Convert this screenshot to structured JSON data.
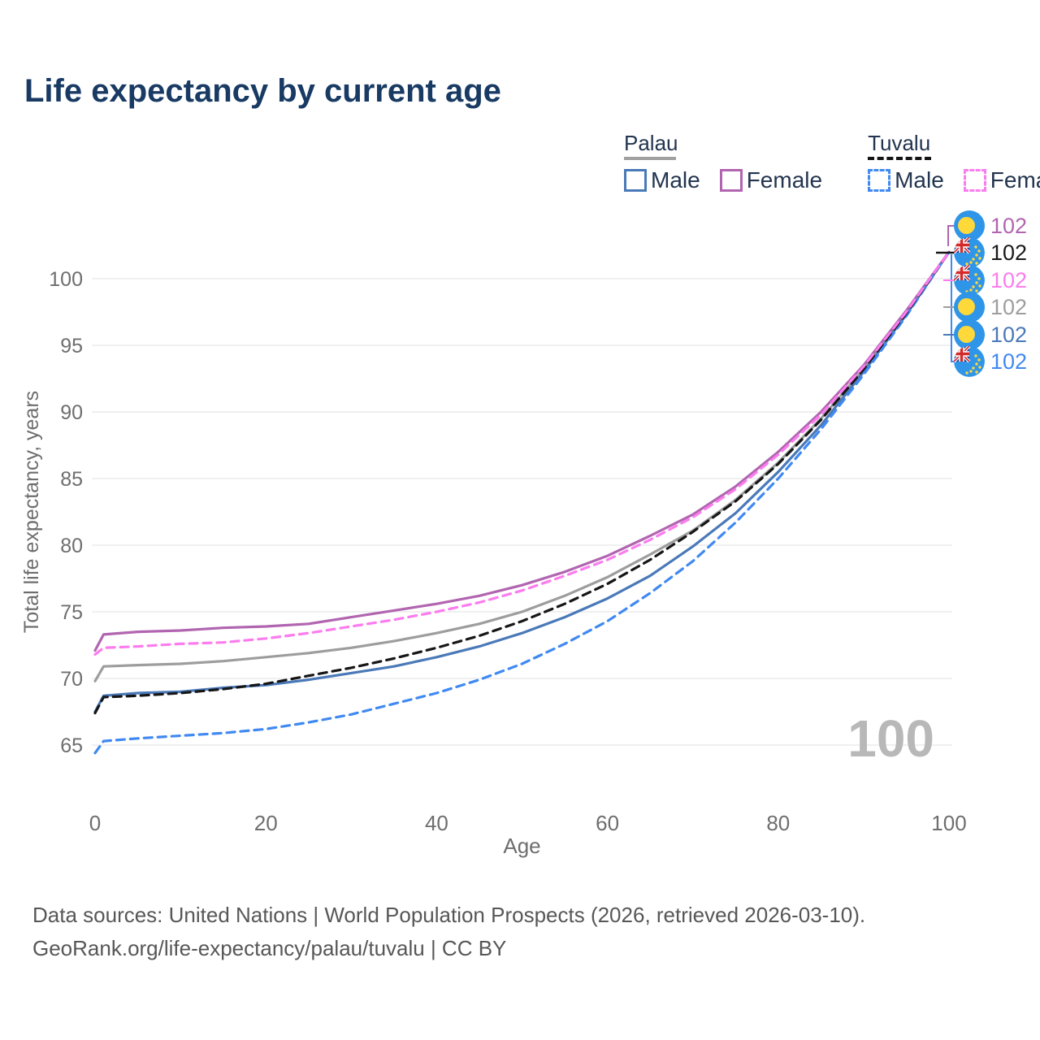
{
  "title": "Life expectancy by current age",
  "watermark": "100",
  "legend": {
    "groups": [
      {
        "label": "Palau",
        "line_style": "solid",
        "underline_color": "#a0a0a0",
        "items": [
          {
            "label": "Male",
            "color": "#4a79b8",
            "dashed": false
          },
          {
            "label": "Female",
            "color": "#b165b0",
            "dashed": false
          }
        ]
      },
      {
        "label": "Tuvalu",
        "line_style": "dashed",
        "underline_color": "#141414",
        "items": [
          {
            "label": "Male",
            "color": "#4089f2",
            "dashed": true
          },
          {
            "label": "Female",
            "color": "#fb7cee",
            "dashed": true
          }
        ]
      }
    ]
  },
  "footer": {
    "line1": "Data sources: United Nations | World Population Prospects (2026, retrieved 2026-03-10).",
    "line2": "GeoRank.org/life-expectancy/palau/tuvalu | CC BY"
  },
  "chart_data": {
    "type": "line",
    "title": "Life expectancy by current age",
    "xlabel": "Age",
    "ylabel": "Total life expectancy, years",
    "x_ticks": [
      0,
      20,
      40,
      60,
      80,
      100
    ],
    "y_ticks": [
      65,
      70,
      75,
      80,
      85,
      90,
      95,
      100
    ],
    "xlim": [
      0,
      100
    ],
    "ylim": [
      63,
      103.5
    ],
    "grid": "horizontal",
    "legend_position": "top-right",
    "x": [
      0,
      1,
      5,
      10,
      15,
      20,
      25,
      30,
      35,
      40,
      45,
      50,
      55,
      60,
      65,
      70,
      75,
      80,
      85,
      90,
      95,
      100
    ],
    "series": [
      {
        "name": "Palau",
        "group": "Palau",
        "color": "#9d9d9d",
        "dashed": false,
        "values": [
          69.8,
          70.9,
          71.0,
          71.1,
          71.3,
          71.6,
          71.9,
          72.3,
          72.8,
          73.4,
          74.1,
          75.0,
          76.2,
          77.6,
          79.3,
          81.1,
          83.4,
          86.2,
          89.5,
          93.2,
          97.4,
          102
        ]
      },
      {
        "name": "Palau Male",
        "group": "Palau",
        "color": "#4a79b8",
        "dashed": false,
        "values": [
          67.5,
          68.7,
          68.9,
          69.0,
          69.3,
          69.5,
          69.9,
          70.4,
          70.9,
          71.6,
          72.4,
          73.4,
          74.6,
          76.0,
          77.7,
          79.9,
          82.4,
          85.5,
          89.0,
          93.0,
          97.3,
          102
        ]
      },
      {
        "name": "Palau Female",
        "group": "Palau",
        "color": "#b165b0",
        "dashed": false,
        "values": [
          72.1,
          73.3,
          73.5,
          73.6,
          73.8,
          73.9,
          74.1,
          74.6,
          75.1,
          75.6,
          76.2,
          77.0,
          78.0,
          79.2,
          80.7,
          82.3,
          84.4,
          87.0,
          90.0,
          93.5,
          97.6,
          102
        ]
      },
      {
        "name": "Tuvalu Male",
        "group": "Tuvalu",
        "color": "#4089f2",
        "dashed": true,
        "values": [
          64.4,
          65.3,
          65.5,
          65.7,
          65.9,
          66.2,
          66.7,
          67.3,
          68.1,
          68.9,
          69.9,
          71.1,
          72.6,
          74.3,
          76.4,
          78.8,
          81.7,
          85.0,
          88.7,
          92.8,
          97.2,
          102
        ]
      },
      {
        "name": "Tuvalu",
        "group": "Tuvalu",
        "color": "#161616",
        "dashed": true,
        "values": [
          67.4,
          68.6,
          68.7,
          68.9,
          69.2,
          69.6,
          70.2,
          70.8,
          71.5,
          72.3,
          73.2,
          74.3,
          75.6,
          77.1,
          78.9,
          81.0,
          83.3,
          86.1,
          89.4,
          93.2,
          97.4,
          102
        ]
      },
      {
        "name": "Tuvalu Female",
        "group": "Tuvalu",
        "color": "#fb7cee",
        "dashed": true,
        "values": [
          71.8,
          72.3,
          72.4,
          72.6,
          72.7,
          73.0,
          73.4,
          73.9,
          74.4,
          75.0,
          75.7,
          76.6,
          77.7,
          78.9,
          80.4,
          82.1,
          84.2,
          86.8,
          89.8,
          93.4,
          97.5,
          102
        ]
      }
    ],
    "end_labels": [
      {
        "series": "Palau Female",
        "flag": "palau",
        "color": "#b165b0",
        "value": "102"
      },
      {
        "series": "Tuvalu",
        "flag": "tuvalu",
        "color": "#1a1a1a",
        "value": "102"
      },
      {
        "series": "Tuvalu Female",
        "flag": "tuvalu",
        "color": "#fb7cee",
        "value": "102"
      },
      {
        "series": "Palau",
        "flag": "palau",
        "color": "#9e9e9e",
        "value": "102"
      },
      {
        "series": "Palau Male",
        "flag": "palau",
        "color": "#4a79b8",
        "value": "102"
      },
      {
        "series": "Tuvalu Male",
        "flag": "tuvalu",
        "color": "#4089f2",
        "value": "102"
      }
    ]
  }
}
